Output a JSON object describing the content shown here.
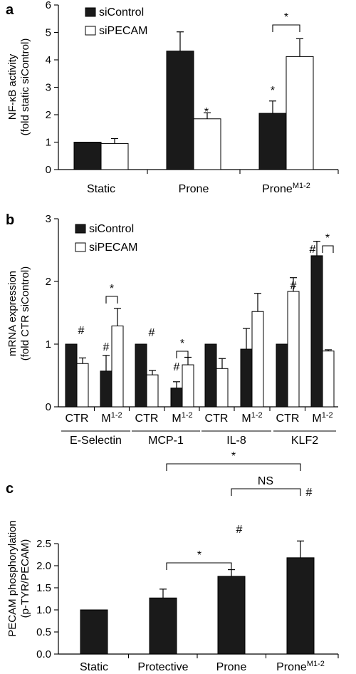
{
  "panels": [
    {
      "letter": "a"
    },
    {
      "letter": "b"
    },
    {
      "letter": "c"
    }
  ],
  "colors": {
    "siControl": "#1a1a1a",
    "siPECAM": "#ffffff",
    "axis": "#000000"
  },
  "chart_data": [
    {
      "type": "bar",
      "ylabel": [
        "NF-κB activity",
        "(fold static siControl)"
      ],
      "categories": [
        "Static",
        "Prone",
        "Prone"
      ],
      "category_superscripts": [
        "",
        "",
        "M1-2"
      ],
      "ylim": [
        0,
        6
      ],
      "yticks": [
        0,
        1,
        2,
        3,
        4,
        5,
        6
      ],
      "legend": [
        "siControl",
        "siPECAM"
      ],
      "legend_position": "top-left",
      "series": [
        {
          "name": "siControl",
          "values": [
            1.0,
            4.32,
            2.05
          ],
          "errors": [
            0,
            0.7,
            0.45
          ]
        },
        {
          "name": "siPECAM",
          "values": [
            0.95,
            1.85,
            4.12
          ],
          "errors": [
            0.18,
            0.22,
            0.65
          ]
        }
      ],
      "annotations": [
        {
          "text": "*",
          "target": "Prone/siPECAM"
        },
        {
          "text": "*",
          "target": "Prone M1-2/siControl"
        },
        {
          "text": "*",
          "bracket": "Prone M1-2 siControl vs siPECAM"
        }
      ]
    },
    {
      "type": "bar",
      "ylabel": [
        "mRNA expression",
        "(fold CTR siControl)"
      ],
      "categories": [
        "CTR",
        "M",
        "CTR",
        "M",
        "CTR",
        "M",
        "CTR",
        "M"
      ],
      "category_superscripts": [
        "",
        "1-2",
        "",
        "1-2",
        "",
        "1-2",
        "",
        "1-2"
      ],
      "groups": [
        "E-Selectin",
        "MCP-1",
        "IL-8",
        "KLF2"
      ],
      "ylim": [
        0,
        3
      ],
      "yticks": [
        0,
        1,
        2,
        3
      ],
      "legend": [
        "siControl",
        "siPECAM"
      ],
      "legend_position": "top-left",
      "series": [
        {
          "name": "siControl",
          "values": [
            1.0,
            0.57,
            1.0,
            0.3,
            1.0,
            0.92,
            1.0,
            2.41
          ],
          "errors": [
            0,
            0.25,
            0,
            0.1,
            0,
            0.33,
            0,
            0.23
          ]
        },
        {
          "name": "siPECAM",
          "values": [
            0.69,
            1.29,
            0.51,
            0.67,
            0.61,
            1.52,
            1.84,
            0.89
          ],
          "errors": [
            0.09,
            0.28,
            0.07,
            0.12,
            0.16,
            0.29,
            0.22,
            0.02
          ]
        }
      ],
      "annotations": [
        {
          "text": "#",
          "target": "E-Selectin CTR/siPECAM"
        },
        {
          "text": "#",
          "target": "E-Selectin M1-2/siControl"
        },
        {
          "text": "*",
          "bracket": "E-Selectin M1-2 siControl vs siPECAM"
        },
        {
          "text": "#",
          "target": "MCP-1 CTR/siPECAM"
        },
        {
          "text": "#",
          "target": "MCP-1 M1-2/siControl"
        },
        {
          "text": "*",
          "bracket": "MCP-1 M1-2 siControl vs siPECAM"
        },
        {
          "text": "#",
          "target": "KLF2 CTR/siPECAM"
        },
        {
          "text": "#",
          "target": "KLF2 M1-2/siControl"
        },
        {
          "text": "*",
          "bracket": "KLF2 M1-2 siControl vs siPECAM"
        }
      ]
    },
    {
      "type": "bar",
      "ylabel": [
        "PECAM phosphorylation",
        "(p-TYR/PECAM)"
      ],
      "categories": [
        "Static",
        "Protective",
        "Prone",
        "Prone"
      ],
      "category_superscripts": [
        "",
        "",
        "",
        "M1-2"
      ],
      "ylim": [
        0,
        2.5
      ],
      "yticks": [
        "0.0",
        "0.5",
        "1.0",
        "1.5",
        "2.0",
        "2.5"
      ],
      "values": [
        1.0,
        1.27,
        1.76,
        2.18
      ],
      "errors": [
        0,
        0.2,
        0.15,
        0.38
      ],
      "annotations": [
        {
          "text": "#",
          "target": "Prone"
        },
        {
          "text": "#",
          "target": "Prone M1-2"
        },
        {
          "text": "*",
          "bracket": "Protective vs Prone"
        },
        {
          "text": "NS",
          "bracket": "Prone vs Prone M1-2"
        },
        {
          "text": "*",
          "bracket": "Protective vs Prone M1-2"
        }
      ]
    }
  ]
}
